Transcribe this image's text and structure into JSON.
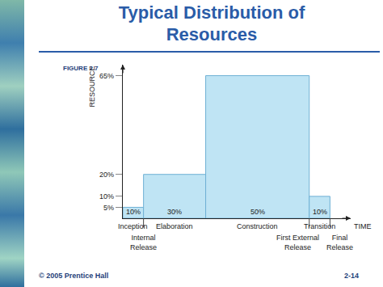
{
  "chart_data": {
    "type": "bar",
    "title": "Typical Distribution of Resources",
    "figure_label": "FIGURE 2.7",
    "x_label": "TIME",
    "y_label": "RESOURCE",
    "categories": [
      "Inception",
      "Elaboration",
      "Construction",
      "Transition"
    ],
    "values": [
      5,
      20,
      65,
      10
    ],
    "widths": [
      10,
      30,
      50,
      10
    ],
    "width_labels": [
      "10%",
      "30%",
      "50%",
      "10%"
    ],
    "milestones": [
      {
        "label": [
          "Internal",
          "Release"
        ],
        "after": "Inception"
      },
      {
        "label": [
          "First External",
          "Release"
        ],
        "after": "Construction"
      },
      {
        "label": [
          "Final",
          "Release"
        ],
        "after": "Transition"
      }
    ],
    "color": "#bfe4f4",
    "xlim": [
      0,
      110
    ],
    "ylim": [
      0,
      70
    ],
    "yticks": [
      {
        "value": 5,
        "label": "5%"
      },
      {
        "value": 10,
        "label": "10%"
      },
      {
        "value": 20,
        "label": "20%"
      },
      {
        "value": 65,
        "label": "65%"
      }
    ],
    "grid": false,
    "tick_labels": "y",
    "footer": "© 2005 Prentice Hall",
    "page": "2-14"
  }
}
